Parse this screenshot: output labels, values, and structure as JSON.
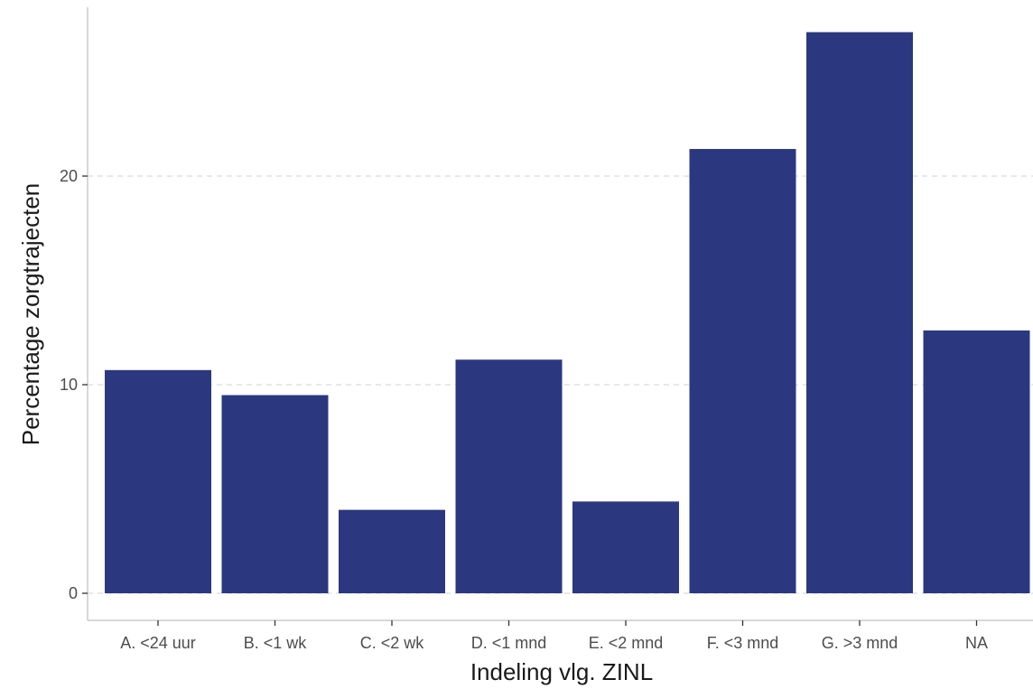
{
  "chart_data": {
    "type": "bar",
    "title": "",
    "xlabel": "Indeling vlg. ZINL",
    "ylabel": "Percentage zorgtrajecten",
    "categories": [
      "A. <24 uur",
      "B. <1 wk",
      "C. <2 wk",
      "D. <1 mnd",
      "E. <2 mnd",
      "F. <3 mnd",
      "G. >3 mnd",
      "NA"
    ],
    "values": [
      10.7,
      9.5,
      4.0,
      11.2,
      4.4,
      21.3,
      26.9,
      12.6
    ],
    "ylim": [
      0,
      27
    ],
    "yticks": [
      0,
      10,
      20
    ],
    "grid": "horizontal-dashed",
    "legend": "none",
    "bar_color": "#2b3880"
  }
}
